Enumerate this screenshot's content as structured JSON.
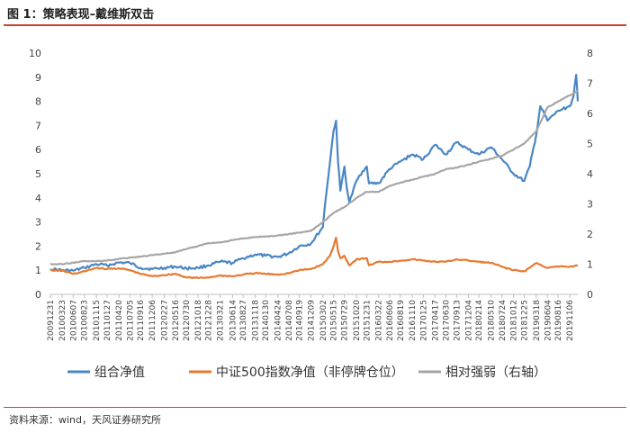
{
  "figure": {
    "title": "图 1：策略表现–戴维斯双击",
    "source": "资料来源：wind，天风证券研究所"
  },
  "colors": {
    "accent": "#c8422c",
    "portfolio": "#4a86c5",
    "csi500": "#e8792e",
    "relative": "#a6a6a6",
    "axis": "#bfbfbf"
  },
  "chart_data": {
    "type": "line",
    "title": "",
    "xlabel": "",
    "ylabel": "",
    "ylim_left": [
      0,
      10
    ],
    "ylim_right": [
      0,
      8
    ],
    "yticks_left": [
      "0",
      "1",
      "2",
      "3",
      "4",
      "5",
      "6",
      "7",
      "8",
      "9",
      "10"
    ],
    "yticks_right": [
      "0",
      "1",
      "2",
      "3",
      "4",
      "5",
      "6",
      "7",
      "8"
    ],
    "grid": false,
    "legend_position": "bottom",
    "x_tick_labels": [
      "20091231",
      "20100323",
      "20100607",
      "20100823",
      "20101115",
      "20110127",
      "20110420",
      "20110705",
      "20110916",
      "20111206",
      "20120227",
      "20120516",
      "20120730",
      "20121018",
      "20121228",
      "20130321",
      "20130614",
      "20130827",
      "20131118",
      "20140130",
      "20140424",
      "20140708",
      "20140919",
      "20141209",
      "20150302",
      "20150515",
      "20150729",
      "20151020",
      "20151231",
      "20160322",
      "20160606",
      "20160819",
      "20161110",
      "20170125",
      "20170417",
      "20170630",
      "20170913",
      "20171204",
      "20180214",
      "20180510",
      "20180724",
      "20181012",
      "20181225",
      "20190318",
      "20190604",
      "20190816",
      "20191106"
    ],
    "series": [
      {
        "name": "组合净值",
        "axis": "left",
        "points": [
          [
            "20091231",
            1.05
          ],
          [
            "20100323",
            1.0
          ],
          [
            "20100607",
            0.98
          ],
          [
            "20100823",
            1.1
          ],
          [
            "20101115",
            1.25
          ],
          [
            "20110127",
            1.2
          ],
          [
            "20110420",
            1.32
          ],
          [
            "20110705",
            1.3
          ],
          [
            "20110916",
            1.1
          ],
          [
            "20111206",
            1.05
          ],
          [
            "20120227",
            1.1
          ],
          [
            "20120516",
            1.15
          ],
          [
            "20120730",
            1.08
          ],
          [
            "20121018",
            1.1
          ],
          [
            "20121228",
            1.2
          ],
          [
            "20130321",
            1.35
          ],
          [
            "20130614",
            1.3
          ],
          [
            "20130827",
            1.5
          ],
          [
            "20131118",
            1.65
          ],
          [
            "20140130",
            1.6
          ],
          [
            "20140424",
            1.55
          ],
          [
            "20140708",
            1.7
          ],
          [
            "20140919",
            2.0
          ],
          [
            "20141209",
            2.1
          ],
          [
            "20150302",
            2.8
          ],
          [
            "20150320",
            3.9
          ],
          [
            "20150420",
            5.5
          ],
          [
            "20150515",
            6.8
          ],
          [
            "20150601",
            7.2
          ],
          [
            "20150615",
            5.5
          ],
          [
            "20150701",
            4.3
          ],
          [
            "20150729",
            5.3
          ],
          [
            "20150815",
            4.4
          ],
          [
            "20150901",
            3.8
          ],
          [
            "20151020",
            4.7
          ],
          [
            "20151201",
            5.1
          ],
          [
            "20151231",
            5.3
          ],
          [
            "20160115",
            4.6
          ],
          [
            "20160322",
            4.6
          ],
          [
            "20160606",
            5.2
          ],
          [
            "20160819",
            5.5
          ],
          [
            "20161110",
            5.8
          ],
          [
            "20170125",
            5.6
          ],
          [
            "20170417",
            6.2
          ],
          [
            "20170630",
            5.8
          ],
          [
            "20170913",
            6.3
          ],
          [
            "20171204",
            6.0
          ],
          [
            "20180214",
            5.8
          ],
          [
            "20180510",
            6.1
          ],
          [
            "20180724",
            5.6
          ],
          [
            "20181012",
            5.0
          ],
          [
            "20181225",
            4.7
          ],
          [
            "20190201",
            5.3
          ],
          [
            "20190318",
            6.6
          ],
          [
            "20190415",
            7.8
          ],
          [
            "20190604",
            7.2
          ],
          [
            "20190816",
            7.6
          ],
          [
            "20191106",
            7.8
          ],
          [
            "20191201",
            8.2
          ],
          [
            "20191220",
            9.1
          ],
          [
            "20191231",
            8.0
          ]
        ]
      },
      {
        "name": "中证500指数净值（非停牌仓位）",
        "axis": "left",
        "points": [
          [
            "20091231",
            1.0
          ],
          [
            "20100323",
            0.98
          ],
          [
            "20100607",
            0.85
          ],
          [
            "20100823",
            0.95
          ],
          [
            "20101115",
            1.1
          ],
          [
            "20110127",
            1.05
          ],
          [
            "20110420",
            1.08
          ],
          [
            "20110705",
            1.0
          ],
          [
            "20110916",
            0.85
          ],
          [
            "20111206",
            0.75
          ],
          [
            "20120227",
            0.8
          ],
          [
            "20120516",
            0.85
          ],
          [
            "20120730",
            0.7
          ],
          [
            "20121018",
            0.68
          ],
          [
            "20121228",
            0.7
          ],
          [
            "20130321",
            0.78
          ],
          [
            "20130614",
            0.75
          ],
          [
            "20130827",
            0.82
          ],
          [
            "20131118",
            0.88
          ],
          [
            "20140130",
            0.85
          ],
          [
            "20140424",
            0.82
          ],
          [
            "20140708",
            0.88
          ],
          [
            "20140919",
            1.0
          ],
          [
            "20141209",
            1.05
          ],
          [
            "20150302",
            1.25
          ],
          [
            "20150420",
            1.6
          ],
          [
            "20150515",
            2.0
          ],
          [
            "20150601",
            2.35
          ],
          [
            "20150615",
            1.8
          ],
          [
            "20150701",
            1.5
          ],
          [
            "20150729",
            1.6
          ],
          [
            "20150901",
            1.2
          ],
          [
            "20151020",
            1.45
          ],
          [
            "20151231",
            1.5
          ],
          [
            "20160115",
            1.2
          ],
          [
            "20160322",
            1.35
          ],
          [
            "20160606",
            1.35
          ],
          [
            "20160819",
            1.4
          ],
          [
            "20161110",
            1.45
          ],
          [
            "20170125",
            1.4
          ],
          [
            "20170417",
            1.35
          ],
          [
            "20170630",
            1.35
          ],
          [
            "20170913",
            1.45
          ],
          [
            "20171204",
            1.4
          ],
          [
            "20180214",
            1.35
          ],
          [
            "20180510",
            1.3
          ],
          [
            "20180724",
            1.15
          ],
          [
            "20181012",
            1.0
          ],
          [
            "20181225",
            0.95
          ],
          [
            "20190318",
            1.3
          ],
          [
            "20190604",
            1.1
          ],
          [
            "20190816",
            1.15
          ],
          [
            "20191106",
            1.15
          ],
          [
            "20191231",
            1.2
          ]
        ]
      },
      {
        "name": "相对强弱（右轴）",
        "axis": "right",
        "points": [
          [
            "20091231",
            1.0
          ],
          [
            "20100323",
            1.0
          ],
          [
            "20100607",
            1.05
          ],
          [
            "20100823",
            1.1
          ],
          [
            "20101115",
            1.1
          ],
          [
            "20110127",
            1.12
          ],
          [
            "20110420",
            1.18
          ],
          [
            "20110705",
            1.22
          ],
          [
            "20110916",
            1.25
          ],
          [
            "20111206",
            1.3
          ],
          [
            "20120227",
            1.35
          ],
          [
            "20120516",
            1.4
          ],
          [
            "20120730",
            1.5
          ],
          [
            "20121018",
            1.6
          ],
          [
            "20121228",
            1.7
          ],
          [
            "20130321",
            1.72
          ],
          [
            "20130614",
            1.8
          ],
          [
            "20130827",
            1.85
          ],
          [
            "20131118",
            1.9
          ],
          [
            "20140130",
            1.92
          ],
          [
            "20140424",
            1.95
          ],
          [
            "20140708",
            2.0
          ],
          [
            "20140919",
            2.05
          ],
          [
            "20141209",
            2.1
          ],
          [
            "20150302",
            2.4
          ],
          [
            "20150515",
            2.7
          ],
          [
            "20150729",
            2.9
          ],
          [
            "20151020",
            3.2
          ],
          [
            "20151231",
            3.4
          ],
          [
            "20160322",
            3.4
          ],
          [
            "20160606",
            3.6
          ],
          [
            "20160819",
            3.7
          ],
          [
            "20161110",
            3.8
          ],
          [
            "20170125",
            3.9
          ],
          [
            "20170417",
            4.0
          ],
          [
            "20170630",
            4.15
          ],
          [
            "20170913",
            4.2
          ],
          [
            "20171204",
            4.3
          ],
          [
            "20180214",
            4.4
          ],
          [
            "20180510",
            4.5
          ],
          [
            "20180724",
            4.6
          ],
          [
            "20181012",
            4.8
          ],
          [
            "20181225",
            5.0
          ],
          [
            "20190318",
            5.4
          ],
          [
            "20190604",
            6.2
          ],
          [
            "20190816",
            6.4
          ],
          [
            "20191106",
            6.6
          ],
          [
            "20191231",
            6.75
          ]
        ]
      }
    ]
  }
}
